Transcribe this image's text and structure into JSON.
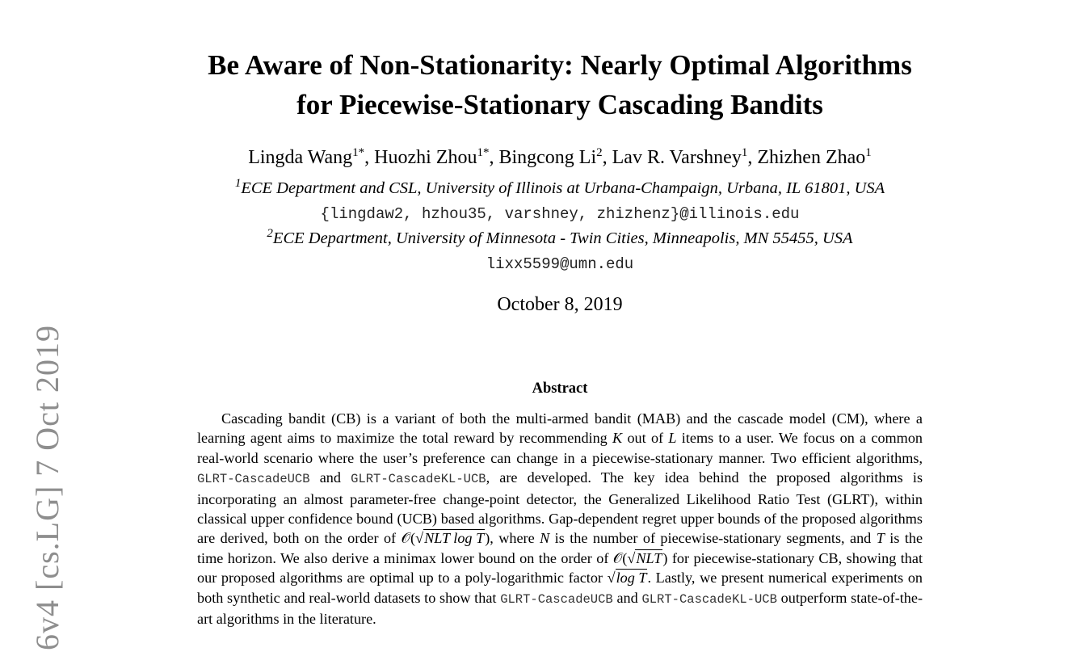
{
  "paper": {
    "title_line1": "Be Aware of Non-Stationarity: Nearly Optimal Algorithms",
    "title_line2": "for Piecewise-Stationary Cascading Bandits",
    "authors": [
      {
        "name": "Lingda Wang",
        "mark": "1",
        "star": "*"
      },
      {
        "name": "Huozhi Zhou",
        "mark": "1",
        "star": "*"
      },
      {
        "name": "Bingcong Li",
        "mark": "2"
      },
      {
        "name": "Lav R. Varshney",
        "mark": "1"
      },
      {
        "name": "Zhizhen Zhao",
        "mark": "1"
      }
    ],
    "affiliation1": {
      "mark": "1",
      "text": "ECE Department and CSL, University of Illinois at Urbana-Champaign, Urbana, IL 61801, USA"
    },
    "email1": "{lingdaw2, hzhou35, varshney, zhizhenz}@illinois.edu",
    "affiliation2": {
      "mark": "2",
      "text": "ECE Department, University of Minnesota - Twin Cities, Minneapolis, MN 55455, USA"
    },
    "email2": "lixx5599@umn.edu",
    "date": "October 8, 2019",
    "abstract_heading": "Abstract",
    "abstract": {
      "p1": "Cascading bandit (CB) is a variant of both the multi-armed bandit (MAB) and the cascade model (CM), where a learning agent aims to maximize the total reward by recommending",
      "K": "K",
      "p2": "out of",
      "L": "L",
      "p3": "items to a user. We focus on a common real-world scenario where the user’s preference can change in a piecewise-stationary manner. Two efficient algorithms,",
      "algo1": "GLRT-CascadeUCB",
      "and1": "and",
      "algo2": "GLRT-CascadeKL-UCB",
      "p4": ", are developed. The key idea behind the proposed algorithms is incorporating an almost parameter-free change-point detector, the Generalized Likelihood Ratio Test (GLRT), within classical upper confidence bound (UCB) based algorithms. Gap-dependent regret upper bounds of the proposed algorithms are derived, both on the order of",
      "bound1_pre": "𝒪(√",
      "bound1_rad": "NLT log T",
      "bound1_post": ")",
      "p5": ", where",
      "N": "N",
      "p6": "is the number of piecewise-stationary segments, and",
      "T": "T",
      "p7": "is the time horizon. We also derive a minimax lower bound on the order of",
      "bound2_pre": "𝒪(√",
      "bound2_rad": "NLT",
      "bound2_post": ")",
      "p8": "for piecewise-stationary CB, showing that our proposed algorithms are optimal up to a poly-logarithmic factor",
      "factor_pre": "√",
      "factor_rad": "log T",
      "p9": ". Lastly, we present numerical experiments on both synthetic and real-world datasets to show that",
      "algo3": "GLRT-CascadeUCB",
      "and2": "and",
      "algo4": "GLRT-CascadeKL-UCB",
      "p10": "outperform state-of-the-art algorithms in the literature."
    }
  },
  "arxiv_stamp": "6v4  [cs.LG]  7 Oct 2019"
}
